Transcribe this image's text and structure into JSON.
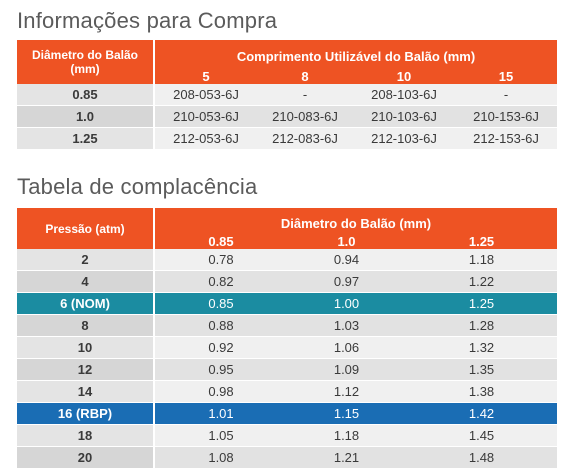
{
  "purchase": {
    "title": "Informações para Compra",
    "col_header_left": "Diâmetro do Balão (mm)",
    "col_header_group": "Comprimento Utilizável do Balão (mm)",
    "lengths": [
      "5",
      "8",
      "10",
      "15"
    ],
    "rows": [
      {
        "diameter": "0.85",
        "cells": [
          "208-053-6J",
          "-",
          "208-103-6J",
          "-"
        ]
      },
      {
        "diameter": "1.0",
        "cells": [
          "210-053-6J",
          "210-083-6J",
          "210-103-6J",
          "210-153-6J"
        ]
      },
      {
        "diameter": "1.25",
        "cells": [
          "212-053-6J",
          "212-083-6J",
          "212-103-6J",
          "212-153-6J"
        ]
      }
    ]
  },
  "compliance": {
    "title": "Tabela de complacência",
    "col_header_left": "Pressão (atm)",
    "col_header_group": "Diâmetro do Balão (mm)",
    "diameters": [
      "0.85",
      "1.0",
      "1.25"
    ],
    "rows": [
      {
        "pressure": "2",
        "cells": [
          "0.78",
          "0.94",
          "1.18"
        ]
      },
      {
        "pressure": "4",
        "cells": [
          "0.82",
          "0.97",
          "1.22"
        ]
      },
      {
        "pressure": "6 (NOM)",
        "cells": [
          "0.85",
          "1.00",
          "1.25"
        ],
        "highlight": "nom"
      },
      {
        "pressure": "8",
        "cells": [
          "0.88",
          "1.03",
          "1.28"
        ]
      },
      {
        "pressure": "10",
        "cells": [
          "0.92",
          "1.06",
          "1.32"
        ]
      },
      {
        "pressure": "12",
        "cells": [
          "0.95",
          "1.09",
          "1.35"
        ]
      },
      {
        "pressure": "14",
        "cells": [
          "0.98",
          "1.12",
          "1.38"
        ]
      },
      {
        "pressure": "16 (RBP)",
        "cells": [
          "1.01",
          "1.15",
          "1.42"
        ],
        "highlight": "rbp"
      },
      {
        "pressure": "18",
        "cells": [
          "1.05",
          "1.18",
          "1.45"
        ]
      },
      {
        "pressure": "20",
        "cells": [
          "1.08",
          "1.21",
          "1.48"
        ]
      }
    ]
  },
  "colors": {
    "header": "#ee5323",
    "nominal": "#1b8ca1",
    "rated_burst": "#1a6db4"
  }
}
